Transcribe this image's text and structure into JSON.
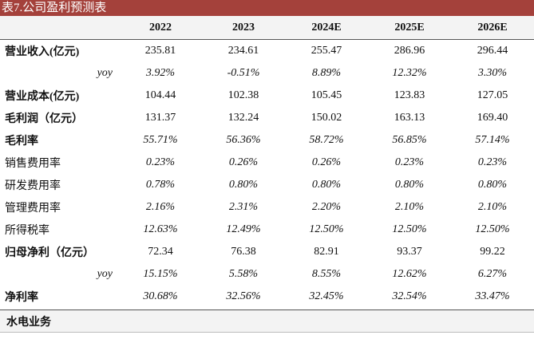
{
  "title": "表7.公司盈利预测表",
  "years": [
    "2022",
    "2023",
    "2024E",
    "2025E",
    "2026E"
  ],
  "rows": [
    {
      "label": "营业收入(亿元)",
      "bold": true,
      "italic": false,
      "align": "left",
      "values": [
        "235.81",
        "234.61",
        "255.47",
        "286.96",
        "296.44"
      ]
    },
    {
      "label": "yoy",
      "bold": false,
      "italic": true,
      "align": "right",
      "values": [
        "3.92%",
        "-0.51%",
        "8.89%",
        "12.32%",
        "3.30%"
      ]
    },
    {
      "label": "营业成本(亿元)",
      "bold": true,
      "italic": false,
      "align": "left",
      "values": [
        "104.44",
        "102.38",
        "105.45",
        "123.83",
        "127.05"
      ]
    },
    {
      "label": "毛利润（亿元）",
      "bold": true,
      "italic": false,
      "align": "left",
      "values": [
        "131.37",
        "132.24",
        "150.02",
        "163.13",
        "169.40"
      ]
    },
    {
      "label": "毛利率",
      "bold": true,
      "italic": true,
      "align": "left",
      "values": [
        "55.71%",
        "56.36%",
        "58.72%",
        "56.85%",
        "57.14%"
      ]
    },
    {
      "label": "销售费用率",
      "bold": false,
      "italic": true,
      "align": "left",
      "values": [
        "0.23%",
        "0.26%",
        "0.26%",
        "0.23%",
        "0.23%"
      ]
    },
    {
      "label": "研发费用率",
      "bold": false,
      "italic": true,
      "align": "left",
      "values": [
        "0.78%",
        "0.80%",
        "0.80%",
        "0.80%",
        "0.80%"
      ]
    },
    {
      "label": "管理费用率",
      "bold": false,
      "italic": true,
      "align": "left",
      "values": [
        "2.16%",
        "2.31%",
        "2.20%",
        "2.10%",
        "2.10%"
      ]
    },
    {
      "label": "所得税率",
      "bold": false,
      "italic": true,
      "align": "left",
      "values": [
        "12.63%",
        "12.49%",
        "12.50%",
        "12.50%",
        "12.50%"
      ]
    },
    {
      "label": "归母净利（亿元）",
      "bold": true,
      "italic": false,
      "align": "left",
      "values": [
        "72.34",
        "76.38",
        "82.91",
        "93.37",
        "99.22"
      ]
    },
    {
      "label": "yoy",
      "bold": false,
      "italic": true,
      "align": "right",
      "values": [
        "15.15%",
        "5.58%",
        "8.55%",
        "12.62%",
        "6.27%"
      ]
    },
    {
      "label": "净利率",
      "bold": true,
      "italic": true,
      "align": "left",
      "values": [
        "30.68%",
        "32.56%",
        "32.45%",
        "32.54%",
        "33.47%"
      ]
    }
  ],
  "section_label": "水电业务"
}
